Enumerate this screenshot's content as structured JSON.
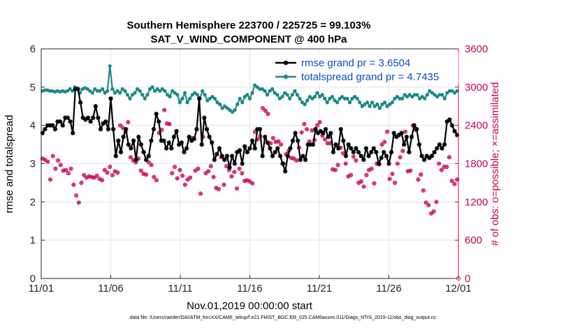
{
  "chart_data": {
    "type": "line",
    "title": "Southern Hemisphere 223700 / 225725 = 99.103%",
    "subtitle": "SAT_V_WIND_COMPONENT @ 400 hPa",
    "xlabel": "Nov.01,2019 00:00:00 start",
    "ylabel_left": "rmse and totalspread",
    "ylabel_right": "# of obs: o=possible; ×=assimilated",
    "xlim": [
      0,
      30
    ],
    "ylim_left": [
      0,
      6
    ],
    "ylim_right": [
      0,
      3600
    ],
    "x_ticks": [
      0,
      5,
      10,
      15,
      20,
      25,
      30
    ],
    "x_tick_labels": [
      "11/01",
      "11/06",
      "11/11",
      "11/16",
      "11/21",
      "11/26",
      "12/01"
    ],
    "y_ticks_left": [
      "0",
      "1",
      "2",
      "3",
      "4",
      "5",
      "6"
    ],
    "y_ticks_right": [
      "0",
      "600",
      "1200",
      "1800",
      "2400",
      "3000",
      "3600"
    ],
    "grid": true,
    "legend_position": "top-right",
    "series": [
      {
        "name": "rmse grand pr = 3.6504",
        "color": "#000000",
        "marker": "star",
        "values": [
          3.8,
          3.9,
          4.0,
          4.0,
          4.0,
          3.9,
          4.1,
          4.1,
          4.0,
          4.2,
          4.2,
          4.1,
          3.8,
          4.95,
          4.95,
          4.6,
          4.2,
          4.15,
          4.2,
          4.1,
          4.2,
          4.5,
          4.2,
          3.9,
          4.05,
          4.1,
          3.9,
          4.7,
          3.9,
          3.2,
          3.6,
          3.3,
          3.7,
          3.9,
          3.5,
          3.4,
          3.6,
          3.1,
          3.7,
          3.5,
          3.3,
          3.1,
          3.2,
          3.6,
          3.9,
          4.3,
          4.1,
          3.6,
          3.6,
          3.4,
          3.55,
          3.4,
          3.7,
          3.85,
          3.5,
          3.55,
          3.3,
          3.4,
          3.7,
          3.6,
          3.65,
          3.9,
          4.7,
          3.5,
          4.2,
          3.9,
          3.7,
          3.55,
          3.1,
          3.25,
          3.4,
          3.2,
          3.1,
          3.2,
          2.9,
          3.2,
          3.0,
          3.3,
          3.35,
          3.0,
          3.45,
          3.3,
          3.4,
          3.6,
          3.4,
          3.9,
          3.9,
          3.2,
          3.7,
          3.55,
          3.4,
          3.2,
          3.3,
          3.4,
          3.2,
          3.0,
          2.8,
          3.2,
          3.4,
          3.6,
          3.8,
          3.6,
          3.1,
          3.2,
          3.1,
          3.5,
          3.5,
          3.5,
          3.9,
          3.8,
          3.85,
          3.8,
          3.9,
          3.7,
          3.8,
          3.3,
          3.5,
          3.4,
          3.9,
          3.6,
          3.2,
          3.5,
          3.4,
          3.3,
          3.4,
          3.3,
          3.2,
          3.1,
          3.4,
          3.2,
          3.3,
          3.4,
          3.3,
          3.0,
          3.15,
          3.3,
          3.2,
          3.0,
          3.3,
          3.8,
          3.7,
          3.75,
          3.8,
          3.5,
          3.7,
          3.3,
          3.7,
          4.0,
          3.9,
          3.5,
          3.2,
          3.1,
          3.2,
          3.15,
          3.2,
          3.3,
          3.4,
          3.5,
          3.4,
          3.5,
          4.1,
          4.15,
          4.0,
          3.85,
          3.75
        ]
      },
      {
        "name": "totalspread grand pr = 4.7435",
        "color": "#1b8a86",
        "marker": "circle",
        "values": [
          4.9,
          4.92,
          4.92,
          4.9,
          4.9,
          4.88,
          4.9,
          4.88,
          4.9,
          4.88,
          4.9,
          4.95,
          4.9,
          5.0,
          4.95,
          4.85,
          4.95,
          4.98,
          4.95,
          4.9,
          4.85,
          4.95,
          4.9,
          4.9,
          4.95,
          4.85,
          4.9,
          5.55,
          4.95,
          4.85,
          4.9,
          4.85,
          4.95,
          4.9,
          4.8,
          4.7,
          4.8,
          4.85,
          4.95,
          4.9,
          4.8,
          4.7,
          4.8,
          4.95,
          5.0,
          4.9,
          4.95,
          4.9,
          4.95,
          4.9,
          4.8,
          4.75,
          4.9,
          4.85,
          4.8,
          4.6,
          4.7,
          4.85,
          4.6,
          4.7,
          4.8,
          4.85,
          4.8,
          4.7,
          4.9,
          4.8,
          4.65,
          4.7,
          4.75,
          4.7,
          4.6,
          4.55,
          4.45,
          4.5,
          4.45,
          4.4,
          4.35,
          4.4,
          4.55,
          4.7,
          4.6,
          4.75,
          4.8,
          4.7,
          4.85,
          5.05,
          5.0,
          4.95,
          4.95,
          4.9,
          4.8,
          4.9,
          4.95,
          4.85,
          4.8,
          4.7,
          4.75,
          4.85,
          4.8,
          4.7,
          4.8,
          4.9,
          4.8,
          4.7,
          4.6,
          4.55,
          4.65,
          4.75,
          4.7,
          4.75,
          4.85,
          4.75,
          4.8,
          4.7,
          4.6,
          4.7,
          4.75,
          4.65,
          4.6,
          4.7,
          4.75,
          4.7,
          4.7,
          4.6,
          4.7,
          4.75,
          4.7,
          4.6,
          4.5,
          4.55,
          4.6,
          4.5,
          4.6,
          4.5,
          4.55,
          4.45,
          4.55,
          4.6,
          4.5,
          4.55,
          4.6,
          4.7,
          4.75,
          4.7,
          4.7,
          4.8,
          4.75,
          4.8,
          4.75,
          4.8,
          4.8,
          4.7,
          4.75,
          4.7,
          4.8,
          4.9,
          4.85,
          4.8,
          4.75,
          4.8,
          4.8,
          4.7,
          4.85,
          4.9,
          4.9,
          4.85,
          4.9
        ]
      }
    ],
    "obs_possible": [
      1880,
      1860,
      1830,
      1550,
      1920,
      1720,
      1850,
      1780,
      1690,
      1700,
      1650,
      1720,
      1470,
      1300,
      1190,
      1500,
      1620,
      1580,
      1600,
      1590,
      1580,
      1610,
      1560,
      1540,
      1700,
      1660,
      1750,
      1620,
      1680,
      1660,
      2400,
      2360,
      2300,
      2450,
      1900,
      1850,
      1820,
      1880,
      1690,
      1640,
      1630,
      1820,
      1780,
      1590,
      1540,
      2280,
      2330,
      2640,
      2430,
      2420,
      1650,
      1750,
      1570,
      1700,
      1610,
      1470,
      1550,
      1580,
      2200,
      1690,
      1720,
      1330,
      2220,
      1650,
      1680,
      1760,
      1590,
      1420,
      1400,
      1900,
      1470,
      1760,
      1700,
      1600,
      1670,
      1410,
      1720,
      1650,
      1530,
      1540,
      1520,
      1490,
      2300,
      2180,
      2230,
      2670,
      2630,
      2580,
      2120,
      2200,
      2140,
      2150,
      2100,
      1800,
      1950,
      2000,
      1890,
      1880,
      1850,
      2050,
      2290,
      2420,
      2340,
      2150,
      2320,
      2170,
      2400,
      2450,
      2240,
      2180,
      2120,
      2120,
      1710,
      1700,
      1780,
      2050,
      1960,
      1800,
      1600,
      1620,
      1910,
      1850,
      1500,
      1520,
      1440,
      1620,
      1700,
      1720,
      1490,
      1800,
      1790,
      2100,
      2140,
      2300,
      1560,
      1640,
      1500,
      1800,
      1900,
      2000,
      2300,
      1680,
      1690,
      2400,
      2330,
      1550,
      1630,
      1380,
      1190,
      1150,
      1020,
      1050,
      1200,
      1800,
      1700,
      1750,
      1750,
      1900,
      1530,
      1480,
      1550
    ]
  },
  "footer": "data file: /Users/raeder/DAI/ATM_forcXX/CAM6_setup/f.e21.FHIST_BGC.f09_025.CAM6assim.011/Diags_NTrS_2019-11/obs_diag_output.nc"
}
